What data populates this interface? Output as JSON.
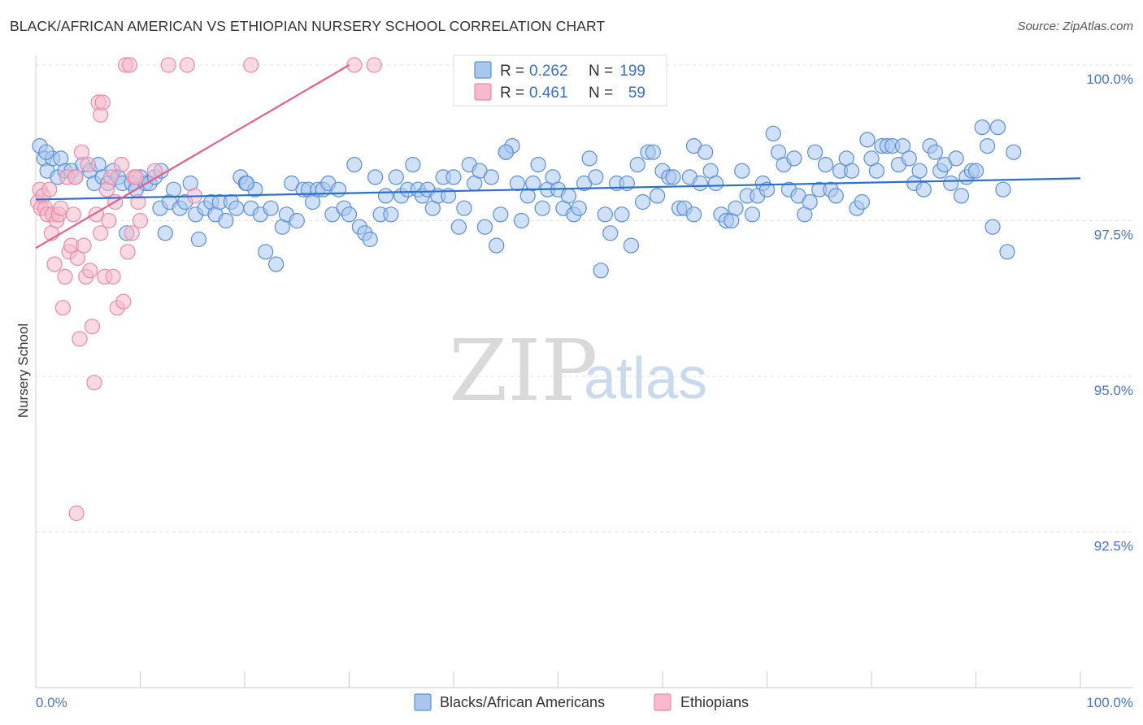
{
  "title": "BLACK/AFRICAN AMERICAN VS ETHIOPIAN NURSERY SCHOOL CORRELATION CHART",
  "source": "Source: ZipAtlas.com",
  "watermark": {
    "zip": "ZIP",
    "atlas": "atlas"
  },
  "colors": {
    "blue_fill": "#a9c6ef",
    "blue_stroke": "#5b8fd6",
    "blue_line": "#2b6fcf",
    "pink_fill": "#f7b9cb",
    "pink_stroke": "#e98aa8",
    "pink_line": "#e0608f",
    "grid": "#e0e0e0",
    "axis_label": "#4a76c6"
  },
  "legend": {
    "rows": [
      {
        "r_label": "R =",
        "r_value": "0.262",
        "n_label": "N =",
        "n_value": "199"
      },
      {
        "r_label": "R =",
        "r_value": "0.461",
        "n_label": "N =",
        "n_value": "59"
      }
    ]
  },
  "chart_data": {
    "type": "scatter",
    "title": "BLACK/AFRICAN AMERICAN VS ETHIOPIAN NURSERY SCHOOL CORRELATION CHART",
    "xlabel": "",
    "ylabel": "Nursery School",
    "xlim": [
      0,
      100
    ],
    "ylim": [
      90.2,
      100.4
    ],
    "x_tick_labels": [
      "0.0%",
      "100.0%"
    ],
    "y_ticks": [
      92.5,
      95.0,
      97.5,
      100.0
    ],
    "y_tick_labels": [
      "92.5%",
      "95.0%",
      "97.5%",
      "100.0%"
    ],
    "grid": true,
    "legend_placement": "top-center",
    "series": [
      {
        "name": "Blacks/African Americans",
        "color": "#a9c6ef",
        "trend": {
          "x": [
            0,
            100
          ],
          "y": [
            97.84,
            98.18
          ]
        },
        "points": [
          [
            0.4,
            98.7
          ],
          [
            0.8,
            98.5
          ],
          [
            1.1,
            98.3
          ],
          [
            1.6,
            98.5
          ],
          [
            2.1,
            98.2
          ],
          [
            2.4,
            98.5
          ],
          [
            2.8,
            98.3
          ],
          [
            3.4,
            98.3
          ],
          [
            3.8,
            98.2
          ],
          [
            4.5,
            98.4
          ],
          [
            5.2,
            98.3
          ],
          [
            5.6,
            98.1
          ],
          [
            6.0,
            98.4
          ],
          [
            6.4,
            98.2
          ],
          [
            6.9,
            98.1
          ],
          [
            7.4,
            98.3
          ],
          [
            7.9,
            98.2
          ],
          [
            8.3,
            98.1
          ],
          [
            8.7,
            97.3
          ],
          [
            9.2,
            98.1
          ],
          [
            9.6,
            98.0
          ],
          [
            10.0,
            98.2
          ],
          [
            10.5,
            98.1
          ],
          [
            10.9,
            98.1
          ],
          [
            11.4,
            98.2
          ],
          [
            11.9,
            97.7
          ],
          [
            12.4,
            97.3
          ],
          [
            12.8,
            97.8
          ],
          [
            13.2,
            98.0
          ],
          [
            13.8,
            97.7
          ],
          [
            14.3,
            97.8
          ],
          [
            14.8,
            98.1
          ],
          [
            15.3,
            97.6
          ],
          [
            15.6,
            97.2
          ],
          [
            16.2,
            97.7
          ],
          [
            16.8,
            97.8
          ],
          [
            17.2,
            97.6
          ],
          [
            17.6,
            97.8
          ],
          [
            18.2,
            97.5
          ],
          [
            18.7,
            97.8
          ],
          [
            19.2,
            97.7
          ],
          [
            19.6,
            98.2
          ],
          [
            20.1,
            98.1
          ],
          [
            20.6,
            97.7
          ],
          [
            21.0,
            98.0
          ],
          [
            21.5,
            97.6
          ],
          [
            22.0,
            97.0
          ],
          [
            22.5,
            97.7
          ],
          [
            23.0,
            96.8
          ],
          [
            23.6,
            97.4
          ],
          [
            24.0,
            97.6
          ],
          [
            24.5,
            98.1
          ],
          [
            25.0,
            97.5
          ],
          [
            25.6,
            98.0
          ],
          [
            26.1,
            98.0
          ],
          [
            26.5,
            97.8
          ],
          [
            27.0,
            98.0
          ],
          [
            27.5,
            98.0
          ],
          [
            28.0,
            98.1
          ],
          [
            28.4,
            97.6
          ],
          [
            29.0,
            98.0
          ],
          [
            29.5,
            97.7
          ],
          [
            30.0,
            97.6
          ],
          [
            30.5,
            98.4
          ],
          [
            31.0,
            97.4
          ],
          [
            31.5,
            97.3
          ],
          [
            32.0,
            97.2
          ],
          [
            32.5,
            98.2
          ],
          [
            33.0,
            97.6
          ],
          [
            33.5,
            97.9
          ],
          [
            34.0,
            97.6
          ],
          [
            34.5,
            98.2
          ],
          [
            35.0,
            97.9
          ],
          [
            35.6,
            98.0
          ],
          [
            36.1,
            98.4
          ],
          [
            36.6,
            98.0
          ],
          [
            37.0,
            97.9
          ],
          [
            37.5,
            98.0
          ],
          [
            38.0,
            97.7
          ],
          [
            38.5,
            97.9
          ],
          [
            39.0,
            98.2
          ],
          [
            39.5,
            97.9
          ],
          [
            40.0,
            98.2
          ],
          [
            40.5,
            97.4
          ],
          [
            41.0,
            97.7
          ],
          [
            41.5,
            98.4
          ],
          [
            42.0,
            98.1
          ],
          [
            42.5,
            98.3
          ],
          [
            43.0,
            97.4
          ],
          [
            43.6,
            98.2
          ],
          [
            44.1,
            97.1
          ],
          [
            44.5,
            97.6
          ],
          [
            45.0,
            98.6
          ],
          [
            45.6,
            98.7
          ],
          [
            46.1,
            98.1
          ],
          [
            46.5,
            97.5
          ],
          [
            47.1,
            97.9
          ],
          [
            47.6,
            98.1
          ],
          [
            48.1,
            98.4
          ],
          [
            48.5,
            97.7
          ],
          [
            49.0,
            98.0
          ],
          [
            49.5,
            98.2
          ],
          [
            50.0,
            98.0
          ],
          [
            50.5,
            97.7
          ],
          [
            51.0,
            97.9
          ],
          [
            51.5,
            97.6
          ],
          [
            52.0,
            97.7
          ],
          [
            52.5,
            98.1
          ],
          [
            53.0,
            98.5
          ],
          [
            53.6,
            98.2
          ],
          [
            54.1,
            96.7
          ],
          [
            54.5,
            97.6
          ],
          [
            55.0,
            97.3
          ],
          [
            55.6,
            98.1
          ],
          [
            56.1,
            97.6
          ],
          [
            56.6,
            98.1
          ],
          [
            57.0,
            97.1
          ],
          [
            57.6,
            98.4
          ],
          [
            58.1,
            97.8
          ],
          [
            58.6,
            98.6
          ],
          [
            59.1,
            98.6
          ],
          [
            59.5,
            97.9
          ],
          [
            60.0,
            98.3
          ],
          [
            60.6,
            98.2
          ],
          [
            61.0,
            98.2
          ],
          [
            61.6,
            97.7
          ],
          [
            62.1,
            97.7
          ],
          [
            62.6,
            98.2
          ],
          [
            63.0,
            98.7
          ],
          [
            63.6,
            98.1
          ],
          [
            64.1,
            98.6
          ],
          [
            64.6,
            98.3
          ],
          [
            65.1,
            98.1
          ],
          [
            65.6,
            97.6
          ],
          [
            66.1,
            97.5
          ],
          [
            66.6,
            97.5
          ],
          [
            67.0,
            97.7
          ],
          [
            67.6,
            98.3
          ],
          [
            68.1,
            97.9
          ],
          [
            68.6,
            97.6
          ],
          [
            69.1,
            97.9
          ],
          [
            69.6,
            98.1
          ],
          [
            70.0,
            98.0
          ],
          [
            70.6,
            98.9
          ],
          [
            71.1,
            98.6
          ],
          [
            71.6,
            98.4
          ],
          [
            72.1,
            98.0
          ],
          [
            72.6,
            98.5
          ],
          [
            73.0,
            97.9
          ],
          [
            73.6,
            97.6
          ],
          [
            74.1,
            97.8
          ],
          [
            74.6,
            98.6
          ],
          [
            75.0,
            98.0
          ],
          [
            75.6,
            98.4
          ],
          [
            76.1,
            98.0
          ],
          [
            76.6,
            97.9
          ],
          [
            77.0,
            98.3
          ],
          [
            77.6,
            98.5
          ],
          [
            78.1,
            98.3
          ],
          [
            78.6,
            97.7
          ],
          [
            79.1,
            97.8
          ],
          [
            79.6,
            98.8
          ],
          [
            80.0,
            98.5
          ],
          [
            80.5,
            98.3
          ],
          [
            81.0,
            98.7
          ],
          [
            81.5,
            98.7
          ],
          [
            82.0,
            98.7
          ],
          [
            82.6,
            98.4
          ],
          [
            83.0,
            98.7
          ],
          [
            83.6,
            98.5
          ],
          [
            84.1,
            98.1
          ],
          [
            84.6,
            98.3
          ],
          [
            85.0,
            98.0
          ],
          [
            85.6,
            98.7
          ],
          [
            86.1,
            98.6
          ],
          [
            86.6,
            98.3
          ],
          [
            87.0,
            98.4
          ],
          [
            87.6,
            98.1
          ],
          [
            88.1,
            98.5
          ],
          [
            88.6,
            97.9
          ],
          [
            89.1,
            98.2
          ],
          [
            89.6,
            98.3
          ],
          [
            90.0,
            98.3
          ],
          [
            90.6,
            99.0
          ],
          [
            91.1,
            98.7
          ],
          [
            91.6,
            97.4
          ],
          [
            92.1,
            99.0
          ],
          [
            92.6,
            98.0
          ],
          [
            93.0,
            97.0
          ],
          [
            93.6,
            98.6
          ],
          [
            63.0,
            97.6
          ],
          [
            45.0,
            98.6
          ],
          [
            20.2,
            98.1
          ],
          [
            12.0,
            98.3
          ],
          [
            1.0,
            98.6
          ]
        ]
      },
      {
        "name": "Ethiopians",
        "color": "#f7b9cb",
        "trend": {
          "x": [
            0,
            30
          ],
          "y": [
            97.06,
            100.0
          ]
        },
        "points": [
          [
            0.2,
            97.8
          ],
          [
            0.4,
            98.0
          ],
          [
            0.5,
            97.7
          ],
          [
            0.7,
            97.9
          ],
          [
            0.9,
            97.7
          ],
          [
            1.1,
            97.6
          ],
          [
            1.3,
            98.0
          ],
          [
            1.5,
            97.3
          ],
          [
            1.6,
            97.6
          ],
          [
            1.8,
            96.8
          ],
          [
            2.0,
            97.5
          ],
          [
            2.2,
            97.6
          ],
          [
            2.4,
            97.7
          ],
          [
            2.6,
            96.1
          ],
          [
            2.8,
            96.6
          ],
          [
            3.0,
            98.2
          ],
          [
            3.2,
            97.0
          ],
          [
            3.4,
            97.1
          ],
          [
            3.6,
            97.6
          ],
          [
            3.8,
            98.2
          ],
          [
            4.0,
            96.9
          ],
          [
            4.2,
            95.6
          ],
          [
            4.4,
            98.6
          ],
          [
            4.6,
            97.1
          ],
          [
            4.8,
            96.6
          ],
          [
            5.0,
            98.4
          ],
          [
            5.2,
            96.7
          ],
          [
            5.4,
            95.8
          ],
          [
            5.6,
            94.9
          ],
          [
            5.8,
            97.6
          ],
          [
            6.0,
            99.4
          ],
          [
            6.2,
            99.2
          ],
          [
            6.4,
            99.4
          ],
          [
            6.6,
            96.6
          ],
          [
            6.8,
            98.0
          ],
          [
            7.0,
            97.5
          ],
          [
            7.2,
            98.2
          ],
          [
            7.4,
            96.6
          ],
          [
            7.6,
            97.8
          ],
          [
            7.8,
            96.1
          ],
          [
            8.2,
            98.4
          ],
          [
            8.4,
            96.2
          ],
          [
            8.6,
            100.0
          ],
          [
            8.8,
            97.0
          ],
          [
            9.0,
            100.0
          ],
          [
            9.2,
            97.3
          ],
          [
            9.4,
            98.2
          ],
          [
            9.6,
            98.2
          ],
          [
            9.8,
            97.8
          ],
          [
            10.0,
            97.5
          ],
          [
            11.4,
            98.3
          ],
          [
            12.7,
            100.0
          ],
          [
            14.5,
            100.0
          ],
          [
            15.2,
            97.9
          ],
          [
            20.6,
            100.0
          ],
          [
            30.5,
            100.0
          ],
          [
            32.4,
            100.0
          ],
          [
            3.9,
            92.8
          ],
          [
            6.2,
            97.3
          ]
        ]
      }
    ]
  }
}
